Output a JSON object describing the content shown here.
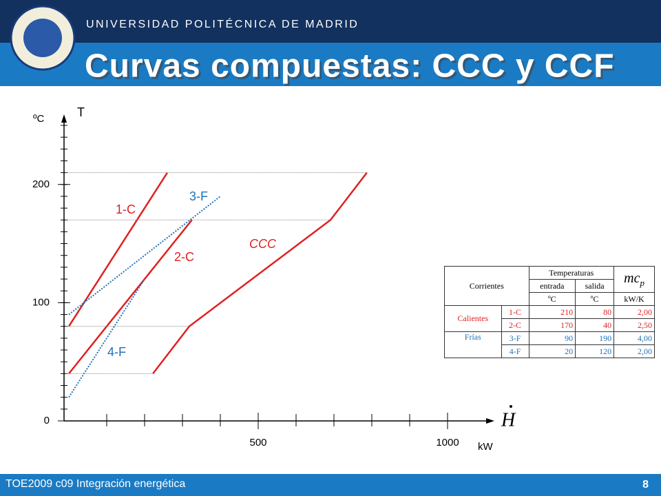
{
  "header": {
    "university": "UNIVERSIDAD POLITÉCNICA DE MADRID",
    "title": "Curvas compuestas: CCC y CCF"
  },
  "chart_data": {
    "type": "line",
    "y_label": "T",
    "y_unit": "ºC",
    "x_symbol": "H",
    "x_unit": "kW",
    "xlim": [
      0,
      1100
    ],
    "ylim": [
      0,
      250
    ],
    "xticks": [
      500,
      1000
    ],
    "yticks": [
      0,
      100,
      200
    ],
    "series": [
      {
        "name": "1-C",
        "color": "#e02020",
        "line_style": "solid",
        "x": [
          0,
          260
        ],
        "values": [
          80,
          210
        ]
      },
      {
        "name": "2-C",
        "color": "#e02020",
        "line_style": "solid",
        "x": [
          0,
          325
        ],
        "values": [
          40,
          170
        ]
      },
      {
        "name": "3-F",
        "color": "#1f72b8",
        "line_style": "dotted",
        "x": [
          0,
          400
        ],
        "values": [
          90,
          190
        ]
      },
      {
        "name": "4-F",
        "color": "#1f72b8",
        "line_style": "dotted",
        "x": [
          0,
          200
        ],
        "values": [
          20,
          120
        ]
      },
      {
        "name": "CCC",
        "color": "#e02020",
        "line_style": "solid",
        "italic": true,
        "x": [
          222,
          318,
          691,
          787
        ],
        "values": [
          40,
          80,
          170,
          210
        ]
      }
    ]
  },
  "table": {
    "corrientes": "Corrientes",
    "temperaturas": "Temperaturas",
    "mcp_main": "mc",
    "mcp_sub": "p",
    "entrada": "entrada",
    "salida": "salida",
    "unit_in": "ºC",
    "unit_out": "ºC",
    "unit_mcp": "kW/K",
    "hot_group": "Calientes",
    "cold_group": "Frías",
    "rows": [
      [
        "1-C",
        "210",
        "80",
        "2,00"
      ],
      [
        "2-C",
        "170",
        "40",
        "2,50"
      ],
      [
        "3-F",
        "90",
        "190",
        "4,00"
      ],
      [
        "4-F",
        "20",
        "120",
        "2,00"
      ]
    ]
  },
  "footer": {
    "course": "TOE2009 c09 Integración energética",
    "page": "8"
  }
}
